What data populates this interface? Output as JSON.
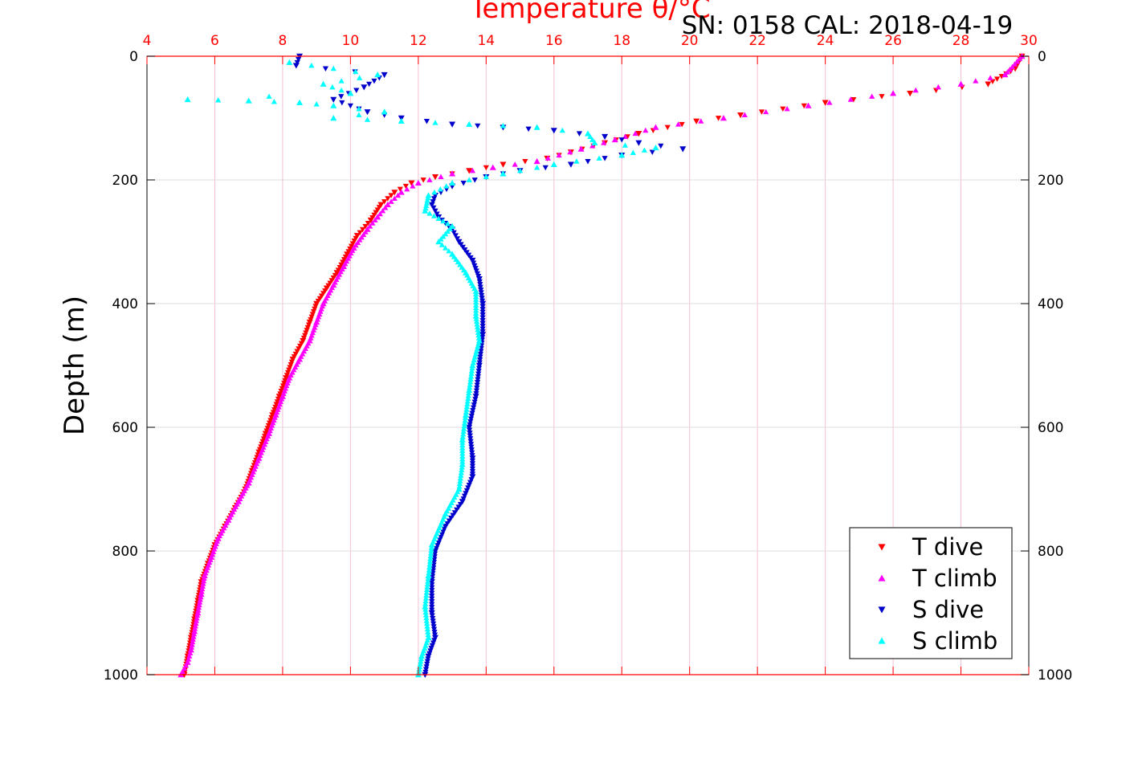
{
  "chart_data": {
    "type": "scatter",
    "title": "Temperature θ/°C",
    "annotation": "SN: 0158  CAL: 2018-04-19",
    "xlabel": "",
    "ylabel": "Depth (m)",
    "xlim": [
      4,
      30
    ],
    "ylim": [
      0,
      1000
    ],
    "y_reversed": true,
    "x_axis_position": "top",
    "x_axis_color": "#ff0000",
    "y_ticks_left": [
      "0",
      "200",
      "400",
      "600",
      "800",
      "1000"
    ],
    "y_ticks_right": [
      "0",
      "200",
      "400",
      "600",
      "800",
      "1000"
    ],
    "x_ticks": [
      "4",
      "6",
      "8",
      "10",
      "12",
      "14",
      "16",
      "18",
      "20",
      "22",
      "24",
      "26",
      "28",
      "30"
    ],
    "grid": true,
    "legend_position": "bottom-right",
    "series": [
      {
        "name": "T dive",
        "color": "#ff0000",
        "marker": "triangle-down",
        "points": [
          [
            29.8,
            0
          ],
          [
            29.6,
            20
          ],
          [
            28.8,
            45
          ],
          [
            26.5,
            60
          ],
          [
            24,
            75
          ],
          [
            21.5,
            95
          ],
          [
            20.2,
            105
          ],
          [
            18.5,
            125
          ],
          [
            17.5,
            140
          ],
          [
            16.5,
            155
          ],
          [
            15.8,
            165
          ],
          [
            14.5,
            175
          ],
          [
            13.5,
            185
          ],
          [
            12.5,
            195
          ],
          [
            11.8,
            205
          ],
          [
            11.3,
            220
          ],
          [
            10.9,
            240
          ],
          [
            10.6,
            265
          ],
          [
            10.2,
            290
          ],
          [
            9.9,
            320
          ],
          [
            9.6,
            350
          ],
          [
            9.3,
            375
          ],
          [
            9.0,
            400
          ],
          [
            8.8,
            430
          ],
          [
            8.6,
            460
          ],
          [
            8.3,
            490
          ],
          [
            8.1,
            520
          ],
          [
            7.9,
            550
          ],
          [
            7.7,
            580
          ],
          [
            7.5,
            610
          ],
          [
            7.3,
            640
          ],
          [
            7.1,
            670
          ],
          [
            6.9,
            700
          ],
          [
            6.6,
            730
          ],
          [
            6.3,
            760
          ],
          [
            6.0,
            790
          ],
          [
            5.8,
            820
          ],
          [
            5.6,
            850
          ],
          [
            5.5,
            880
          ],
          [
            5.4,
            910
          ],
          [
            5.3,
            940
          ],
          [
            5.2,
            970
          ],
          [
            5.1,
            1000
          ]
        ]
      },
      {
        "name": "T climb",
        "color": "#ff00ff",
        "marker": "triangle-up",
        "points": [
          [
            29.8,
            0
          ],
          [
            29.3,
            30
          ],
          [
            28,
            45
          ],
          [
            26,
            60
          ],
          [
            23.5,
            80
          ],
          [
            21,
            100
          ],
          [
            19,
            115
          ],
          [
            17.8,
            135
          ],
          [
            16.8,
            150
          ],
          [
            15.5,
            170
          ],
          [
            14.2,
            180
          ],
          [
            13,
            190
          ],
          [
            12,
            205
          ],
          [
            11.5,
            220
          ],
          [
            11.1,
            240
          ],
          [
            10.8,
            260
          ],
          [
            10.5,
            280
          ],
          [
            10.1,
            310
          ],
          [
            9.8,
            340
          ],
          [
            9.5,
            370
          ],
          [
            9.2,
            400
          ],
          [
            9.0,
            430
          ],
          [
            8.8,
            460
          ],
          [
            8.5,
            490
          ],
          [
            8.2,
            520
          ],
          [
            8.0,
            550
          ],
          [
            7.8,
            580
          ],
          [
            7.6,
            610
          ],
          [
            7.3,
            650
          ],
          [
            7.0,
            690
          ],
          [
            6.7,
            720
          ],
          [
            6.4,
            750
          ],
          [
            6.1,
            780
          ],
          [
            5.9,
            810
          ],
          [
            5.7,
            840
          ],
          [
            5.6,
            870
          ],
          [
            5.5,
            900
          ],
          [
            5.4,
            930
          ],
          [
            5.3,
            960
          ],
          [
            5.2,
            980
          ],
          [
            5.0,
            1000
          ]
        ]
      },
      {
        "name": "S dive",
        "color": "#0000cc",
        "marker": "triangle-down",
        "points": [
          [
            8.5,
            0
          ],
          [
            8.4,
            15
          ],
          [
            11.0,
            30
          ],
          [
            10.4,
            50
          ],
          [
            9.5,
            70
          ],
          [
            10.5,
            90
          ],
          [
            11.5,
            100
          ],
          [
            13.0,
            110
          ],
          [
            14.5,
            115
          ],
          [
            16.0,
            120
          ],
          [
            17.5,
            130
          ],
          [
            18.5,
            140
          ],
          [
            19.8,
            150
          ],
          [
            18.0,
            160
          ],
          [
            16.5,
            175
          ],
          [
            15.0,
            185
          ],
          [
            14.0,
            195
          ],
          [
            13.0,
            210
          ],
          [
            12.5,
            225
          ],
          [
            12.4,
            240
          ],
          [
            12.6,
            260
          ],
          [
            13.0,
            280
          ],
          [
            13.2,
            300
          ],
          [
            13.6,
            330
          ],
          [
            13.8,
            360
          ],
          [
            13.9,
            400
          ],
          [
            13.9,
            450
          ],
          [
            13.8,
            500
          ],
          [
            13.7,
            550
          ],
          [
            13.5,
            600
          ],
          [
            13.6,
            650
          ],
          [
            13.6,
            680
          ],
          [
            13.3,
            720
          ],
          [
            12.8,
            760
          ],
          [
            12.5,
            800
          ],
          [
            12.4,
            850
          ],
          [
            12.4,
            900
          ],
          [
            12.5,
            940
          ],
          [
            12.3,
            970
          ],
          [
            12.2,
            1000
          ]
        ]
      },
      {
        "name": "S climb",
        "color": "#00ffff",
        "marker": "triangle-up",
        "points": [
          [
            8.2,
            10
          ],
          [
            10.8,
            30
          ],
          [
            9.2,
            45
          ],
          [
            10.0,
            60
          ],
          [
            5.2,
            70
          ],
          [
            7.0,
            72
          ],
          [
            8.5,
            75
          ],
          [
            9.5,
            80
          ],
          [
            11.0,
            90
          ],
          [
            9.5,
            100
          ],
          [
            11.5,
            105
          ],
          [
            13.5,
            110
          ],
          [
            15.5,
            115
          ],
          [
            17.0,
            125
          ],
          [
            17.2,
            140
          ],
          [
            19.0,
            148
          ],
          [
            18.0,
            160
          ],
          [
            16.0,
            175
          ],
          [
            14.5,
            190
          ],
          [
            13.0,
            205
          ],
          [
            12.3,
            225
          ],
          [
            12.2,
            250
          ],
          [
            13.0,
            275
          ],
          [
            12.6,
            300
          ],
          [
            13.0,
            320
          ],
          [
            13.4,
            350
          ],
          [
            13.7,
            380
          ],
          [
            13.7,
            420
          ],
          [
            13.8,
            460
          ],
          [
            13.6,
            500
          ],
          [
            13.5,
            540
          ],
          [
            13.4,
            580
          ],
          [
            13.3,
            620
          ],
          [
            13.3,
            660
          ],
          [
            13.2,
            700
          ],
          [
            12.8,
            740
          ],
          [
            12.4,
            790
          ],
          [
            12.3,
            840
          ],
          [
            12.2,
            890
          ],
          [
            12.3,
            940
          ],
          [
            12.1,
            970
          ],
          [
            12.0,
            1000
          ]
        ]
      }
    ]
  }
}
